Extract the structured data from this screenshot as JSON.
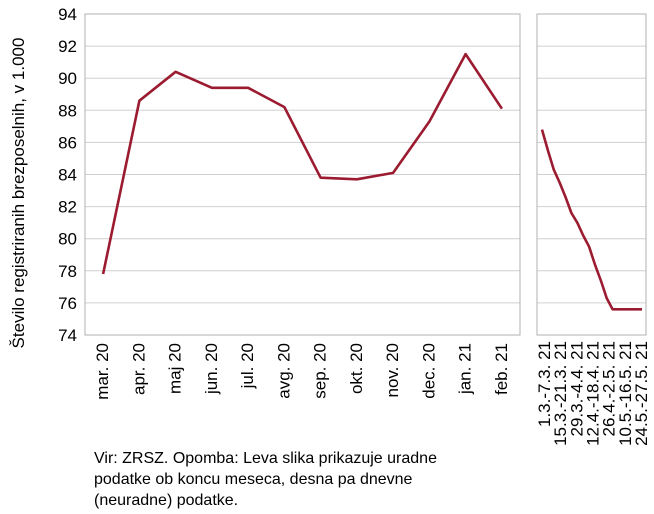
{
  "chart_data": {
    "type": "line",
    "ylabel": "Število registriranih brezposelnih, v 1.000",
    "ylim": [
      74,
      94
    ],
    "yticks": [
      "74",
      "76",
      "78",
      "80",
      "82",
      "84",
      "86",
      "88",
      "90",
      "92",
      "94"
    ],
    "color": "#9b1b30",
    "grid": "horizontal",
    "panels": [
      {
        "name": "monthly",
        "categories": [
          "mar. 20",
          "apr. 20",
          "maj 20",
          "jun. 20",
          "jul. 20",
          "avg. 20",
          "sep. 20",
          "okt. 20",
          "nov. 20",
          "dec. 20",
          "jan. 21",
          "feb. 21"
        ],
        "values": [
          77.8,
          88.6,
          90.4,
          89.4,
          89.4,
          88.2,
          83.8,
          83.7,
          84.1,
          87.3,
          91.5,
          88.1
        ]
      },
      {
        "name": "daily",
        "categories": [
          "1.3.-7.3. 21",
          "15.3.-21.3. 21",
          "29.3.-4.4. 21",
          "12.4.-18.4. 21",
          "26.4.-2.5. 21",
          "10.5.-16.5. 21",
          "24.5.-27.5. 21"
        ],
        "x": [
          0,
          5,
          10,
          15,
          20,
          25,
          30,
          35,
          40,
          45,
          50,
          55,
          60,
          65,
          70,
          75,
          80,
          85
        ],
        "values": [
          86.8,
          85.5,
          84.3,
          83.5,
          82.6,
          81.6,
          81.0,
          80.2,
          79.5,
          78.4,
          77.4,
          76.3,
          75.6,
          75.6,
          75.6,
          75.6,
          75.6,
          75.6
        ]
      }
    ]
  },
  "note": "Vir: ZRSZ. Opomba: Leva slika prikazuje uradne podatke ob koncu meseca, desna pa dnevne (neuradne) podatke."
}
